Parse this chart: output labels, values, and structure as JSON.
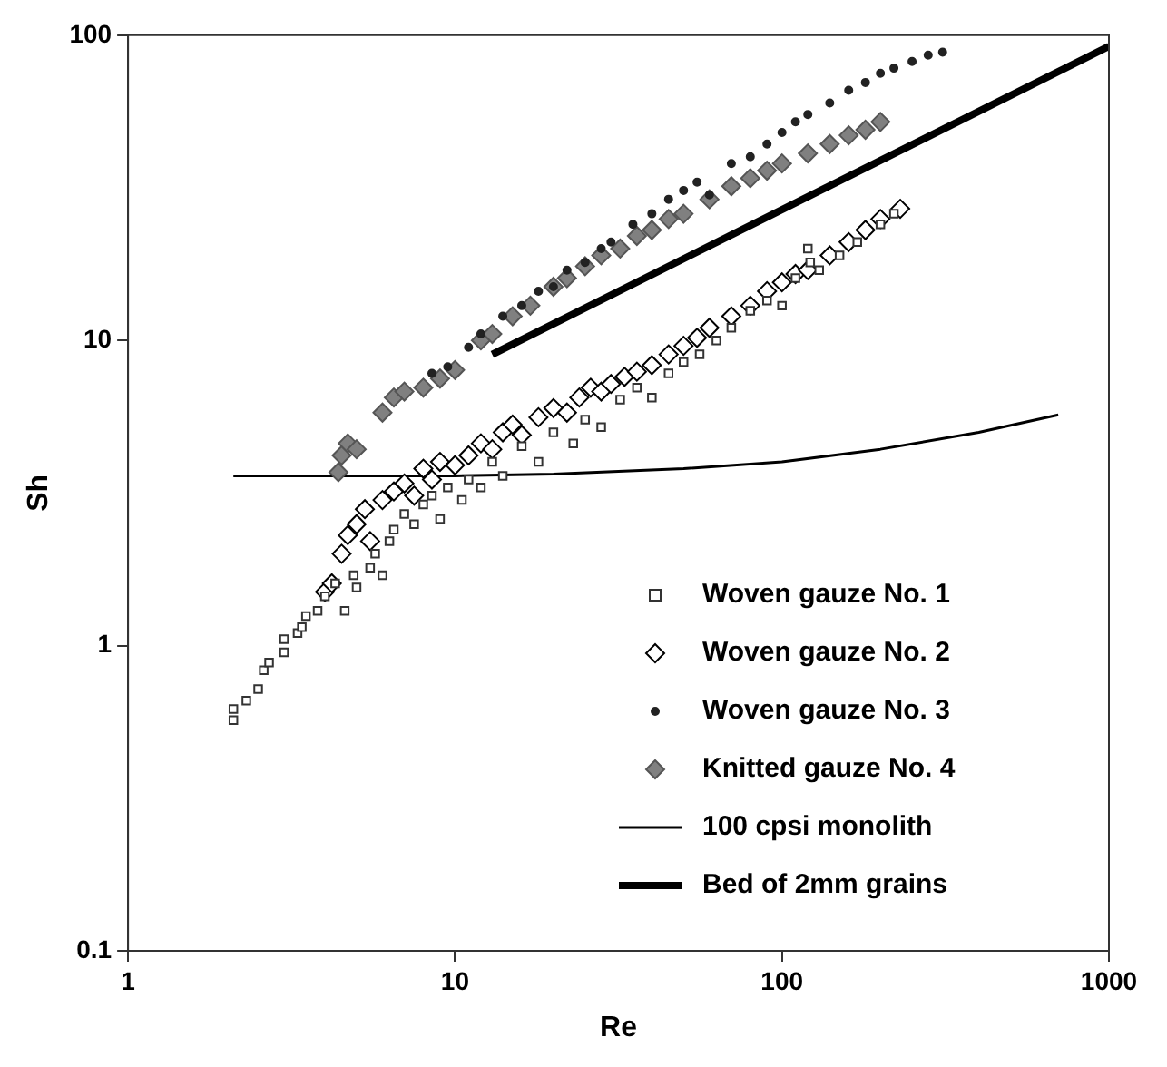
{
  "chart_data": {
    "type": "scatter",
    "xlabel": "Re",
    "ylabel": "Sh",
    "log": "xy",
    "xlim": [
      1,
      1000
    ],
    "ylim": [
      0.1,
      100
    ],
    "xticks": [
      1,
      10,
      100,
      1000
    ],
    "yticks": [
      0.1,
      1,
      10,
      100
    ],
    "grid": false,
    "legend": "bottom right",
    "series": [
      {
        "name": "Woven gauze No. 1",
        "marker": "square",
        "color": "#333333",
        "x": [
          2.1,
          2.1,
          2.3,
          2.5,
          2.6,
          2.7,
          3.0,
          3.0,
          3.3,
          3.5,
          3.4,
          3.8,
          4.0,
          4.3,
          4.6,
          4.9,
          5.0,
          5.5,
          5.7,
          6.0,
          6.3,
          6.5,
          7.0,
          7.5,
          8.0,
          8.5,
          9.0,
          9.5,
          10.5,
          11,
          12,
          13,
          14,
          16,
          18,
          20,
          23,
          25,
          28,
          32,
          36,
          40,
          45,
          50,
          56,
          63,
          70,
          80,
          90,
          100,
          110,
          120,
          122,
          130,
          150,
          170,
          200,
          220
        ],
        "values": [
          0.57,
          0.62,
          0.66,
          0.72,
          0.83,
          0.88,
          0.95,
          1.05,
          1.1,
          1.25,
          1.15,
          1.3,
          1.45,
          1.6,
          1.3,
          1.7,
          1.55,
          1.8,
          2.0,
          1.7,
          2.2,
          2.4,
          2.7,
          2.5,
          2.9,
          3.1,
          2.6,
          3.3,
          3.0,
          3.5,
          3.3,
          4.0,
          3.6,
          4.5,
          4.0,
          5.0,
          4.6,
          5.5,
          5.2,
          6.4,
          7.0,
          6.5,
          7.8,
          8.5,
          9.0,
          10,
          11,
          12.5,
          13.5,
          13,
          16,
          20,
          18,
          17,
          19,
          21,
          24,
          26
        ]
      },
      {
        "name": "Woven gauze No. 2",
        "marker": "diamond",
        "color": "#000000",
        "x": [
          4.0,
          4.2,
          4.5,
          4.7,
          5,
          5.3,
          5.5,
          6,
          6.5,
          7,
          7.5,
          8,
          8.5,
          9,
          10,
          11,
          12,
          13,
          14,
          15,
          16,
          18,
          20,
          22,
          24,
          26,
          28,
          30,
          33,
          36,
          40,
          45,
          50,
          55,
          60,
          70,
          80,
          90,
          100,
          110,
          120,
          140,
          160,
          180,
          200,
          230
        ],
        "values": [
          1.5,
          1.6,
          2.0,
          2.3,
          2.5,
          2.8,
          2.2,
          3.0,
          3.2,
          3.4,
          3.1,
          3.8,
          3.5,
          4.0,
          3.9,
          4.2,
          4.6,
          4.4,
          5.0,
          5.3,
          4.9,
          5.6,
          6.0,
          5.8,
          6.5,
          7.0,
          6.8,
          7.2,
          7.6,
          7.9,
          8.3,
          9.0,
          9.6,
          10.2,
          11,
          12,
          13,
          14.5,
          15.5,
          16.5,
          17,
          19,
          21,
          23,
          25,
          27
        ]
      },
      {
        "name": "Woven gauze No. 3",
        "marker": "circle",
        "color": "#222222",
        "x": [
          8.5,
          9.5,
          11,
          12,
          14,
          16,
          18,
          20,
          22,
          25,
          28,
          30,
          35,
          40,
          45,
          50,
          55,
          60,
          70,
          80,
          90,
          100,
          110,
          120,
          140,
          160,
          180,
          200,
          220,
          250,
          280,
          310
        ],
        "values": [
          7.8,
          8.2,
          9.5,
          10.5,
          12,
          13,
          14.5,
          15,
          17,
          18,
          20,
          21,
          24,
          26,
          29,
          31,
          33,
          30,
          38,
          40,
          44,
          48,
          52,
          55,
          60,
          66,
          70,
          75,
          78,
          82,
          86,
          88
        ]
      },
      {
        "name": "Knitted gauze No. 4",
        "marker": "diamond",
        "color": "#808080",
        "x": [
          4.4,
          4.5,
          4.7,
          5,
          6,
          6.5,
          7,
          8,
          9,
          10,
          12,
          13,
          15,
          17,
          20,
          22,
          25,
          28,
          32,
          36,
          40,
          45,
          50,
          60,
          70,
          80,
          90,
          100,
          120,
          140,
          160,
          180,
          200
        ],
        "values": [
          3.7,
          4.2,
          4.6,
          4.4,
          5.8,
          6.5,
          6.8,
          7.0,
          7.5,
          8.0,
          10.0,
          10.5,
          12,
          13,
          15,
          16,
          17.5,
          19,
          20,
          22,
          23,
          25,
          26,
          29,
          32,
          34,
          36,
          38,
          41,
          44,
          47,
          49,
          52
        ]
      },
      {
        "name": "100 cpsi monolith",
        "type": "line",
        "marker": "none",
        "color": "#000000",
        "x": [
          2.1,
          10,
          20,
          50,
          100,
          200,
          400,
          700
        ],
        "values": [
          3.6,
          3.6,
          3.65,
          3.8,
          4.0,
          4.4,
          5.0,
          5.7
        ]
      },
      {
        "name": "Bed of 2mm grains",
        "type": "line",
        "marker": "none",
        "color": "#000000",
        "x": [
          13,
          1000
        ],
        "values": [
          9,
          92
        ]
      }
    ]
  }
}
